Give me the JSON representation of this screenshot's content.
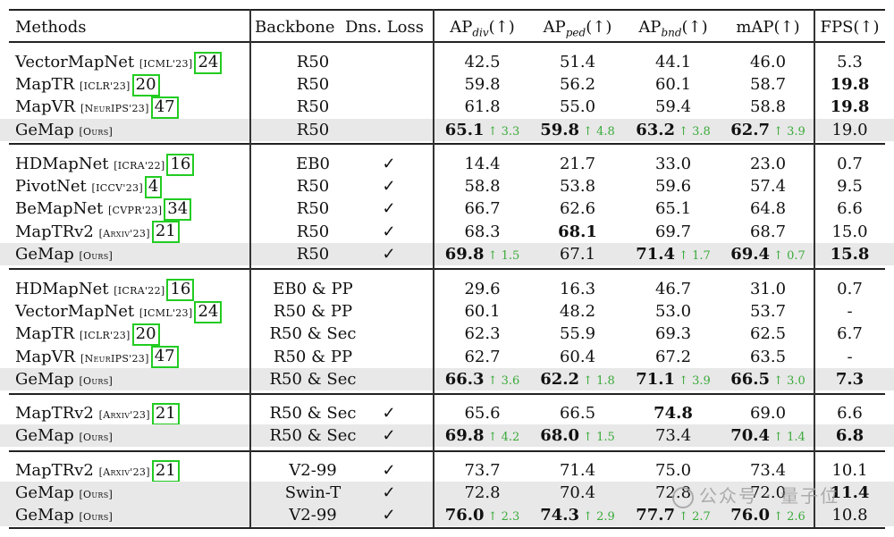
{
  "header": {
    "methods": "Methods",
    "backbone": "Backbone",
    "dns_loss": "Dns. Loss",
    "ap_div": {
      "base": "AP",
      "sub": "div",
      "arrow": "(↑)"
    },
    "ap_ped": {
      "base": "AP",
      "sub": "ped",
      "arrow": "(↑)"
    },
    "ap_bnd": {
      "base": "AP",
      "sub": "bnd",
      "arrow": "(↑)"
    },
    "map": "mAP(↑)",
    "fps": "FPS(↑)"
  },
  "groups": [
    {
      "rows": [
        {
          "method": "VectorMapNet",
          "venue": "[ICML'23]",
          "ref": "24",
          "backbone": "R50",
          "dns": "",
          "ap_div": "42.5",
          "ap_ped": "51.4",
          "ap_bnd": "44.1",
          "map": "46.0",
          "fps": "5.3"
        },
        {
          "method": "MapTR",
          "venue": "[ICLR'23]",
          "ref": "20",
          "backbone": "R50",
          "dns": "",
          "ap_div": "59.8",
          "ap_ped": "56.2",
          "ap_bnd": "60.1",
          "map": "58.7",
          "fps": "19.8",
          "bold": [
            "fps"
          ]
        },
        {
          "method": "MapVR",
          "venue": "[NeurIPS'23]",
          "ref": "47",
          "backbone": "R50",
          "dns": "",
          "ap_div": "61.8",
          "ap_ped": "55.0",
          "ap_bnd": "59.4",
          "map": "58.8",
          "fps": "19.8",
          "bold": [
            "fps"
          ]
        },
        {
          "method": "GeMap",
          "venue": "[Ours]",
          "ref": "",
          "backbone": "R50",
          "dns": "",
          "ap_div": "65.1",
          "ap_ped": "59.8",
          "ap_bnd": "63.2",
          "map": "62.7",
          "fps": "19.0",
          "shade": true,
          "bold": [
            "ap_div",
            "ap_ped",
            "ap_bnd",
            "map"
          ],
          "delta": {
            "ap_div": "↑ 3.3",
            "ap_ped": "↑ 4.8",
            "ap_bnd": "↑ 3.8",
            "map": "↑ 3.9"
          }
        }
      ]
    },
    {
      "rows": [
        {
          "method": "HDMapNet",
          "venue": "[ICRA'22]",
          "ref": "16",
          "backbone": "EB0",
          "dns": "✓",
          "ap_div": "14.4",
          "ap_ped": "21.7",
          "ap_bnd": "33.0",
          "map": "23.0",
          "fps": "0.7"
        },
        {
          "method": "PivotNet",
          "venue": "[ICCV'23]",
          "ref": "4",
          "backbone": "R50",
          "dns": "✓",
          "ap_div": "58.8",
          "ap_ped": "53.8",
          "ap_bnd": "59.6",
          "map": "57.4",
          "fps": "9.5"
        },
        {
          "method": "BeMapNet",
          "venue": "[CVPR'23]",
          "ref": "34",
          "backbone": "R50",
          "dns": "✓",
          "ap_div": "66.7",
          "ap_ped": "62.6",
          "ap_bnd": "65.1",
          "map": "64.8",
          "fps": "6.6"
        },
        {
          "method": "MapTRv2",
          "venue": "[Arxiv'23]",
          "ref": "21",
          "backbone": "R50",
          "dns": "✓",
          "ap_div": "68.3",
          "ap_ped": "68.1",
          "ap_bnd": "69.7",
          "map": "68.7",
          "fps": "15.0",
          "bold": [
            "ap_ped"
          ]
        },
        {
          "method": "GeMap",
          "venue": "[Ours]",
          "ref": "",
          "backbone": "R50",
          "dns": "✓",
          "ap_div": "69.8",
          "ap_ped": "67.1",
          "ap_bnd": "71.4",
          "map": "69.4",
          "fps": "15.8",
          "shade": true,
          "bold": [
            "ap_div",
            "ap_bnd",
            "map",
            "fps"
          ],
          "delta": {
            "ap_div": "↑ 1.5",
            "ap_bnd": "↑ 1.7",
            "map": "↑ 0.7"
          }
        }
      ]
    },
    {
      "rows": [
        {
          "method": "HDMapNet",
          "venue": "[ICRA'22]",
          "ref": "16",
          "backbone": "EB0 & PP",
          "dns": "",
          "ap_div": "29.6",
          "ap_ped": "16.3",
          "ap_bnd": "46.7",
          "map": "31.0",
          "fps": "0.7"
        },
        {
          "method": "VectorMapNet",
          "venue": "[ICML'23]",
          "ref": "24",
          "backbone": "R50 & PP",
          "dns": "",
          "ap_div": "60.1",
          "ap_ped": "48.2",
          "ap_bnd": "53.0",
          "map": "53.7",
          "fps": "-"
        },
        {
          "method": "MapTR",
          "venue": "[ICLR'23]",
          "ref": "20",
          "backbone": "R50 & Sec",
          "dns": "",
          "ap_div": "62.3",
          "ap_ped": "55.9",
          "ap_bnd": "69.3",
          "map": "62.5",
          "fps": "6.7"
        },
        {
          "method": "MapVR",
          "venue": "[NeurIPS'23]",
          "ref": "47",
          "backbone": "R50 & PP",
          "dns": "",
          "ap_div": "62.7",
          "ap_ped": "60.4",
          "ap_bnd": "67.2",
          "map": "63.5",
          "fps": "-"
        },
        {
          "method": "GeMap",
          "venue": "[Ours]",
          "ref": "",
          "backbone": "R50 & Sec",
          "dns": "",
          "ap_div": "66.3",
          "ap_ped": "62.2",
          "ap_bnd": "71.1",
          "map": "66.5",
          "fps": "7.3",
          "shade": true,
          "bold": [
            "ap_div",
            "ap_ped",
            "ap_bnd",
            "map",
            "fps"
          ],
          "delta": {
            "ap_div": "↑ 3.6",
            "ap_ped": "↑ 1.8",
            "ap_bnd": "↑ 3.9",
            "map": "↑ 3.0"
          }
        }
      ]
    },
    {
      "rows": [
        {
          "method": "MapTRv2",
          "venue": "[Arxiv'23]",
          "ref": "21",
          "backbone": "R50 & Sec",
          "dns": "✓",
          "ap_div": "65.6",
          "ap_ped": "66.5",
          "ap_bnd": "74.8",
          "map": "69.0",
          "fps": "6.6",
          "bold": [
            "ap_bnd"
          ]
        },
        {
          "method": "GeMap",
          "venue": "[Ours]",
          "ref": "",
          "backbone": "R50 & Sec",
          "dns": "✓",
          "ap_div": "69.8",
          "ap_ped": "68.0",
          "ap_bnd": "73.4",
          "map": "70.4",
          "fps": "6.8",
          "shade": true,
          "bold": [
            "ap_div",
            "ap_ped",
            "map",
            "fps"
          ],
          "delta": {
            "ap_div": "↑ 4.2",
            "ap_ped": "↑ 1.5",
            "map": "↑ 1.4"
          }
        }
      ]
    },
    {
      "rows": [
        {
          "method": "MapTRv2",
          "venue": "[Arxiv'23]",
          "ref": "21",
          "backbone": "V2-99",
          "dns": "✓",
          "ap_div": "73.7",
          "ap_ped": "71.4",
          "ap_bnd": "75.0",
          "map": "73.4",
          "fps": "10.1"
        },
        {
          "method": "GeMap",
          "venue": "[Ours]",
          "ref": "",
          "backbone": "Swin-T",
          "dns": "✓",
          "ap_div": "72.8",
          "ap_ped": "70.4",
          "ap_bnd": "72.8",
          "map": "72.0",
          "fps": "11.4",
          "shade": true,
          "bold": [
            "fps"
          ]
        },
        {
          "method": "GeMap",
          "venue": "[Ours]",
          "ref": "",
          "backbone": "V2-99",
          "dns": "✓",
          "ap_div": "76.0",
          "ap_ped": "74.3",
          "ap_bnd": "77.7",
          "map": "76.0",
          "fps": "10.8",
          "shade": true,
          "bold": [
            "ap_div",
            "ap_ped",
            "ap_bnd",
            "map"
          ],
          "delta": {
            "ap_div": "↑ 2.3",
            "ap_ped": "↑ 2.9",
            "ap_bnd": "↑ 2.7",
            "map": "↑ 2.6"
          }
        }
      ]
    }
  ],
  "watermark": "公众号 · 量子位"
}
